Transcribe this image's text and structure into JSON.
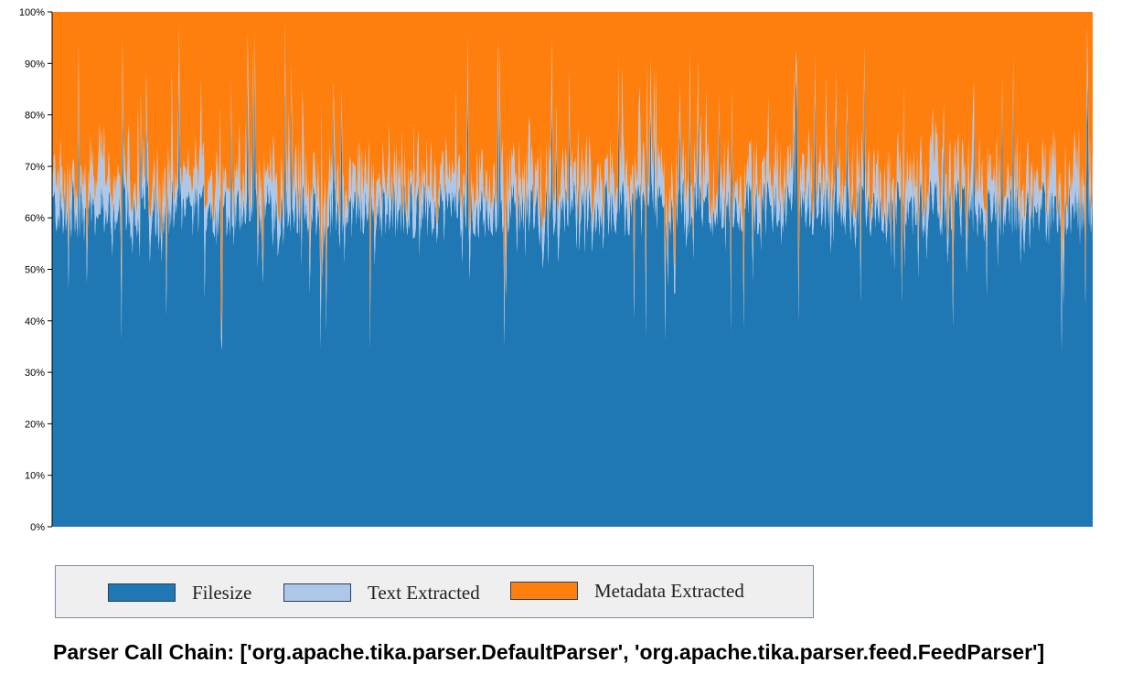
{
  "chart_data": {
    "type": "area",
    "stacked": true,
    "normalized": true,
    "ylim": [
      0,
      100
    ],
    "y_ticks": [
      "0%",
      "10%",
      "20%",
      "30%",
      "40%",
      "50%",
      "60%",
      "70%",
      "80%",
      "90%",
      "100%"
    ],
    "series": [
      {
        "name": "Filesize",
        "color": "#1f77b4"
      },
      {
        "name": "Text Extracted",
        "color": "#aec7e8"
      },
      {
        "name": "Metadata Extracted",
        "color": "#ff7f0e"
      }
    ],
    "approx_share_percent": {
      "Filesize": 62,
      "Text Extracted": 5,
      "Metadata Extracted": 33
    },
    "min_filesize_share_percent": 34,
    "legend_position": "bottom-left"
  },
  "footer": {
    "title": "Parser Call Chain: ['org.apache.tika.parser.DefaultParser', 'org.apache.tika.parser.feed.FeedParser']"
  }
}
